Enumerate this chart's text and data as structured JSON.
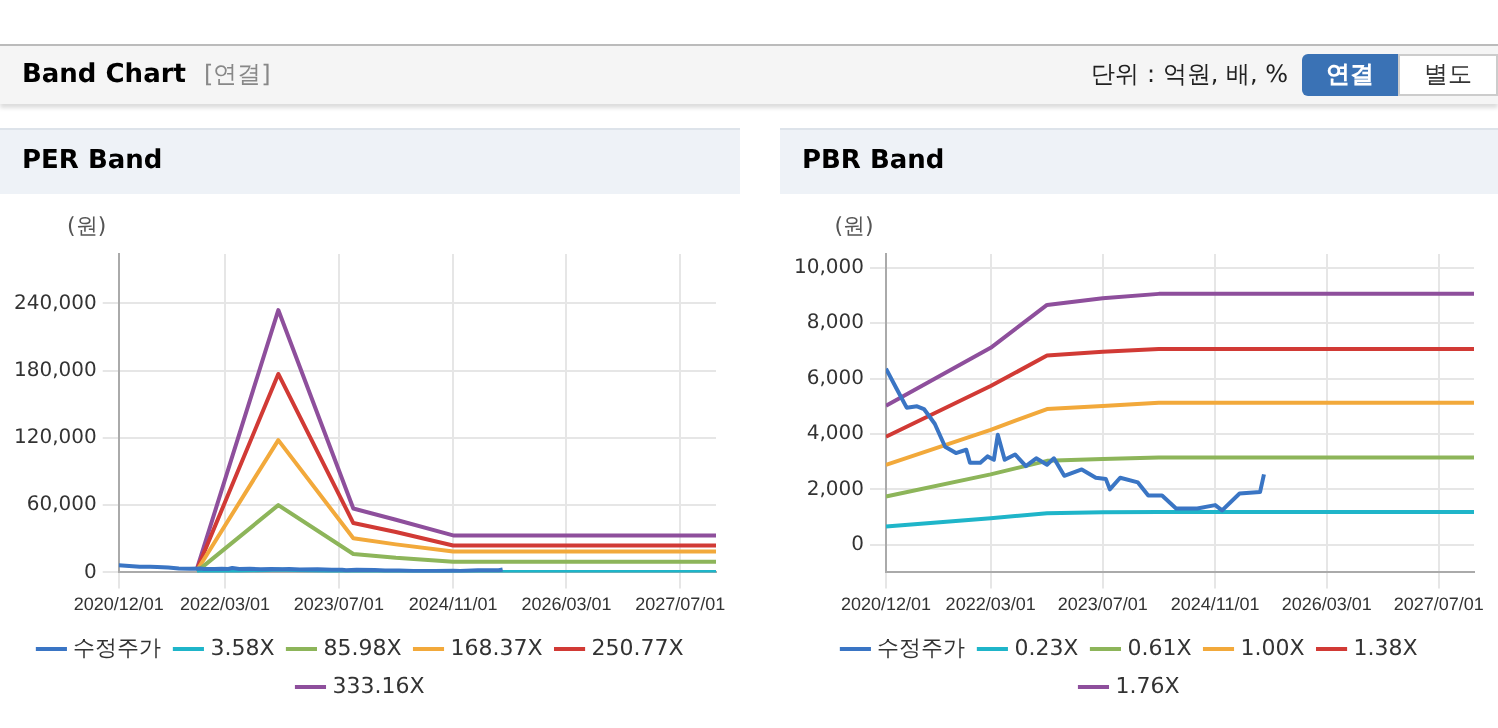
{
  "chart_data": [
    {
      "type": "line",
      "title": "PER Band",
      "ylabel": "(원)",
      "annotations": [
        "Band Chart",
        "[연결]",
        "단위 : 억원, 배, %",
        "연결",
        "별도"
      ],
      "xlim": [
        "2020-12-01",
        "2027-12-01"
      ],
      "xticks": [
        {
          "value": "2020-12-01",
          "label": "2020/12/01"
        },
        {
          "value": "2022-03-01",
          "label": "2022/03/01"
        },
        {
          "value": "2023-07-01",
          "label": "2023/07/01"
        },
        {
          "value": "2024-11-01",
          "label": "2024/11/01"
        },
        {
          "value": "2026-03-01",
          "label": "2026/03/01"
        },
        {
          "value": "2027-07-01",
          "label": "2027/07/01"
        }
      ],
      "ylim": [
        0,
        284000
      ],
      "yticks": [
        0,
        {
          "value": 60000,
          "label": "60,000"
        },
        {
          "value": 120000,
          "label": "120,000"
        },
        {
          "value": 180000,
          "label": "180,000"
        },
        {
          "value": 240000,
          "label": "240,000"
        }
      ],
      "grid": true,
      "legend": "bottom",
      "marker": "none",
      "line_style": "solid",
      "series": [
        {
          "name": "수정주가",
          "color": "#3a75c4",
          "x": [
            "2020-12-01",
            "2021-01-15",
            "2021-03-01",
            "2021-04-15",
            "2021-05-15",
            "2021-07-01",
            "2021-08-15",
            "2021-10-01",
            "2021-11-15",
            "2021-12-01",
            "2022-01-15",
            "2022-02-15",
            "2022-03-15",
            "2022-04-01",
            "2022-05-01",
            "2022-06-15",
            "2022-08-01",
            "2022-09-15",
            "2022-11-01",
            "2022-12-01",
            "2023-01-15",
            "2023-04-01",
            "2023-06-01",
            "2023-07-15",
            "2023-08-01",
            "2023-09-15",
            "2023-12-01",
            "2024-01-15",
            "2024-03-15",
            "2024-05-15",
            "2024-08-15",
            "2024-11-01",
            "2024-12-01",
            "2025-02-15",
            "2025-05-15",
            "2025-06-01"
          ],
          "values": [
            6360,
            5650,
            4950,
            5000,
            4900,
            4370,
            3540,
            3310,
            3430,
            2960,
            2960,
            3190,
            3070,
            3970,
            3070,
            3260,
            2840,
            3120,
            2890,
            3120,
            2490,
            2720,
            2420,
            2370,
            2000,
            2420,
            2250,
            1780,
            1780,
            1310,
            1310,
            1430,
            1240,
            1850,
            1900,
            2540
          ]
        },
        {
          "name": "3.58X",
          "color": "#1fb5c9",
          "x": [
            "2021-11-01",
            "2022-10-15",
            "2023-09-01",
            "2024-03-01",
            "2024-11-01",
            "2027-12-01"
          ],
          "values": [
            40,
            2500,
            610,
            500,
            360,
            360
          ]
        },
        {
          "name": "85.98X",
          "color": "#8db55a",
          "x": [
            "2021-11-01",
            "2022-10-15",
            "2023-09-01",
            "2024-03-01",
            "2024-11-01",
            "2027-12-01"
          ],
          "values": [
            900,
            60000,
            16400,
            13000,
            9600,
            9600
          ]
        },
        {
          "name": "168.37X",
          "color": "#f2a93b",
          "x": [
            "2021-11-01",
            "2022-10-15",
            "2023-09-01",
            "2024-03-01",
            "2024-11-01",
            "2027-12-01"
          ],
          "values": [
            1700,
            118000,
            30500,
            25000,
            18700,
            18700
          ]
        },
        {
          "name": "250.77X",
          "color": "#d13a35",
          "x": [
            "2021-11-01",
            "2022-10-15",
            "2023-09-01",
            "2024-03-01",
            "2024-11-01",
            "2027-12-01"
          ],
          "values": [
            2600,
            177000,
            44000,
            36000,
            24000,
            24000
          ]
        },
        {
          "name": "333.16X",
          "color": "#8e4f9c",
          "x": [
            "2021-11-01",
            "2022-10-15",
            "2023-09-01",
            "2024-03-01",
            "2024-11-01",
            "2027-12-01"
          ],
          "values": [
            3400,
            234000,
            57000,
            47000,
            33000,
            33000
          ]
        }
      ]
    },
    {
      "type": "line",
      "title": "PBR Band",
      "ylabel": "(원)",
      "xlim": [
        "2020-12-01",
        "2027-12-01"
      ],
      "xticks": [
        {
          "value": "2020-12-01",
          "label": "2020/12/01"
        },
        {
          "value": "2022-03-01",
          "label": "2022/03/01"
        },
        {
          "value": "2023-07-01",
          "label": "2023/07/01"
        },
        {
          "value": "2024-11-01",
          "label": "2024/11/01"
        },
        {
          "value": "2026-03-01",
          "label": "2026/03/01"
        },
        {
          "value": "2027-07-01",
          "label": "2027/07/01"
        }
      ],
      "ylim": [
        -1000,
        10500
      ],
      "yticks": [
        0,
        {
          "value": 2000,
          "label": "2,000"
        },
        {
          "value": 4000,
          "label": "4,000"
        },
        {
          "value": 6000,
          "label": "6,000"
        },
        {
          "value": 8000,
          "label": "8,000"
        },
        {
          "value": 10000,
          "label": "10,000"
        }
      ],
      "grid": true,
      "legend": "bottom",
      "marker": "none",
      "line_style": "solid",
      "series": [
        {
          "name": "수정주가",
          "color": "#3a75c4",
          "x": [
            "2020-12-01",
            "2021-01-15",
            "2021-03-01",
            "2021-04-15",
            "2021-05-15",
            "2021-07-01",
            "2021-08-15",
            "2021-10-01",
            "2021-11-15",
            "2021-12-01",
            "2022-01-15",
            "2022-02-15",
            "2022-03-15",
            "2022-04-01",
            "2022-05-01",
            "2022-06-15",
            "2022-08-01",
            "2022-09-15",
            "2022-11-01",
            "2022-12-01",
            "2023-01-15",
            "2023-04-01",
            "2023-06-01",
            "2023-07-15",
            "2023-08-01",
            "2023-09-15",
            "2023-12-01",
            "2024-01-15",
            "2024-03-15",
            "2024-05-15",
            "2024-08-15",
            "2024-11-01",
            "2024-12-01",
            "2025-02-15",
            "2025-05-15",
            "2025-06-01"
          ],
          "values": [
            6360,
            5650,
            4950,
            5000,
            4900,
            4370,
            3540,
            3310,
            3430,
            2960,
            2960,
            3190,
            3070,
            3970,
            3070,
            3260,
            2840,
            3120,
            2890,
            3120,
            2490,
            2720,
            2420,
            2370,
            2000,
            2420,
            2250,
            1780,
            1780,
            1310,
            1310,
            1430,
            1240,
            1850,
            1900,
            2540
          ]
        },
        {
          "name": "0.23X",
          "color": "#1fb5c9",
          "x": [
            "2020-12-01",
            "2022-03-01",
            "2022-11-01",
            "2023-07-01",
            "2024-03-01",
            "2027-12-01"
          ],
          "values": [
            660,
            960,
            1140,
            1170,
            1180,
            1180
          ]
        },
        {
          "name": "0.61X",
          "color": "#8db55a",
          "x": [
            "2020-12-01",
            "2022-03-01",
            "2022-11-01",
            "2023-07-01",
            "2024-03-01",
            "2027-12-01"
          ],
          "values": [
            1740,
            2540,
            3030,
            3100,
            3150,
            3150
          ]
        },
        {
          "name": "1.00X",
          "color": "#f2a93b",
          "x": [
            "2020-12-01",
            "2022-03-01",
            "2022-11-01",
            "2023-07-01",
            "2024-03-01",
            "2027-12-01"
          ],
          "values": [
            2880,
            4150,
            4900,
            5010,
            5130,
            5130
          ]
        },
        {
          "name": "1.38X",
          "color": "#d13a35",
          "x": [
            "2020-12-01",
            "2022-03-01",
            "2022-11-01",
            "2023-07-01",
            "2024-03-01",
            "2027-12-01"
          ],
          "values": [
            3900,
            5730,
            6830,
            6970,
            7070,
            7070
          ]
        },
        {
          "name": "1.76X",
          "color": "#8e4f9c",
          "x": [
            "2020-12-01",
            "2022-03-01",
            "2022-11-01",
            "2023-07-01",
            "2024-03-01",
            "2027-12-01"
          ],
          "values": [
            5020,
            7110,
            8660,
            8900,
            9060,
            9060
          ]
        }
      ]
    }
  ]
}
